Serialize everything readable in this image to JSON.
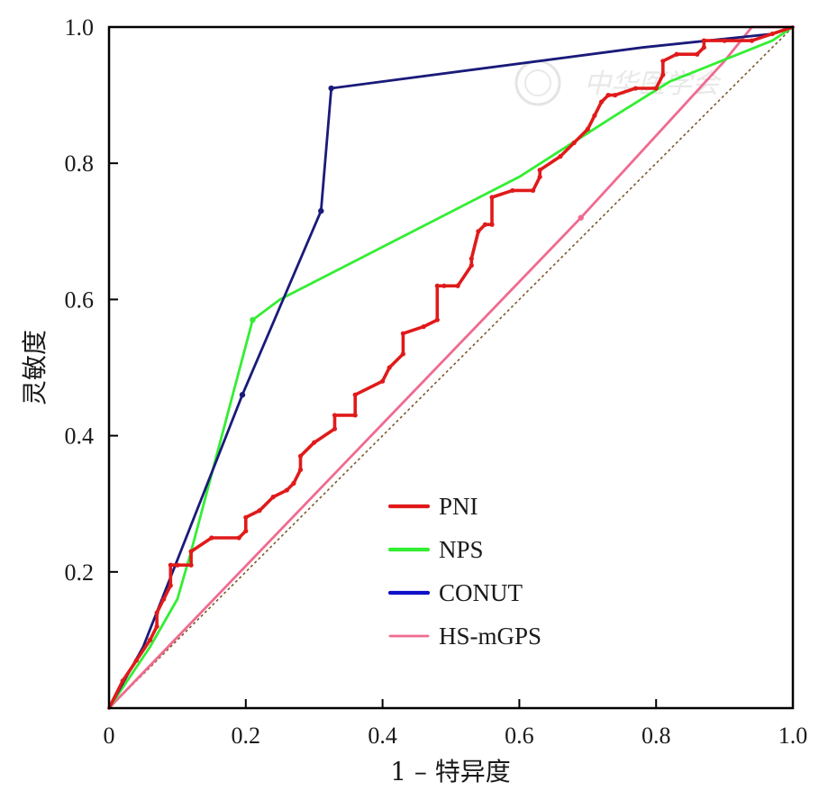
{
  "chart_data": {
    "type": "line",
    "title": "",
    "xlabel": "1 – 特异度",
    "ylabel": "灵敏度",
    "xlim": [
      0,
      1
    ],
    "ylim": [
      0,
      1
    ],
    "x_ticks": [
      "0",
      "0.2",
      "0.4",
      "0.6",
      "0.8",
      "1.0"
    ],
    "y_ticks": [
      "0.2",
      "0.4",
      "0.6",
      "0.8",
      "1.0"
    ],
    "grid": false,
    "legend_position": "lower-center",
    "reference_line": "diagonal dotted",
    "series": [
      {
        "name": "PNI",
        "color": "#e01a1a",
        "x": [
          0,
          0.02,
          0.04,
          0.06,
          0.07,
          0.07,
          0.08,
          0.09,
          0.09,
          0.1,
          0.12,
          0.12,
          0.15,
          0.19,
          0.2,
          0.2,
          0.22,
          0.24,
          0.26,
          0.27,
          0.28,
          0.28,
          0.3,
          0.33,
          0.33,
          0.36,
          0.36,
          0.4,
          0.41,
          0.43,
          0.43,
          0.46,
          0.48,
          0.48,
          0.49,
          0.51,
          0.53,
          0.53,
          0.54,
          0.55,
          0.56,
          0.56,
          0.59,
          0.62,
          0.63,
          0.63,
          0.66,
          0.68,
          0.7,
          0.71,
          0.72,
          0.73,
          0.74,
          0.77,
          0.8,
          0.81,
          0.81,
          0.83,
          0.86,
          0.87,
          0.87,
          0.9,
          0.94,
          0.97,
          1.0
        ],
        "y": [
          0,
          0.04,
          0.07,
          0.1,
          0.12,
          0.14,
          0.16,
          0.18,
          0.21,
          0.21,
          0.21,
          0.23,
          0.25,
          0.25,
          0.26,
          0.28,
          0.29,
          0.31,
          0.32,
          0.33,
          0.35,
          0.37,
          0.39,
          0.41,
          0.43,
          0.43,
          0.46,
          0.48,
          0.5,
          0.52,
          0.55,
          0.56,
          0.57,
          0.62,
          0.62,
          0.62,
          0.65,
          0.66,
          0.7,
          0.71,
          0.71,
          0.75,
          0.76,
          0.76,
          0.78,
          0.79,
          0.81,
          0.83,
          0.85,
          0.87,
          0.89,
          0.9,
          0.9,
          0.91,
          0.91,
          0.93,
          0.95,
          0.96,
          0.96,
          0.97,
          0.98,
          0.98,
          0.98,
          0.99,
          1.0
        ]
      },
      {
        "name": "NPS",
        "color": "#33ee33",
        "x": [
          0,
          0.06,
          0.1,
          0.12,
          0.21,
          0.25,
          0.6,
          0.74,
          0.82,
          0.97,
          1.0
        ],
        "y": [
          0,
          0.09,
          0.16,
          0.23,
          0.57,
          0.6,
          0.78,
          0.87,
          0.92,
          0.98,
          1.0
        ],
        "markers": [
          0.57
        ]
      },
      {
        "name": "CONUT",
        "color": "#1a1a7a",
        "x": [
          0,
          0.05,
          0.195,
          0.31,
          0.325,
          0.78,
          0.97,
          1.0
        ],
        "y": [
          0,
          0.09,
          0.46,
          0.73,
          0.91,
          0.97,
          0.99,
          1.0
        ],
        "markers": [
          0.46,
          0.73,
          0.91
        ]
      },
      {
        "name": "HS-mGPS",
        "color": "#f06a90",
        "x": [
          0,
          0.69,
          0.9,
          0.94,
          0.96,
          1.0
        ],
        "y": [
          0,
          0.72,
          0.95,
          1.0,
          1.0,
          1.0
        ],
        "markers": [
          0.72
        ]
      }
    ]
  }
}
